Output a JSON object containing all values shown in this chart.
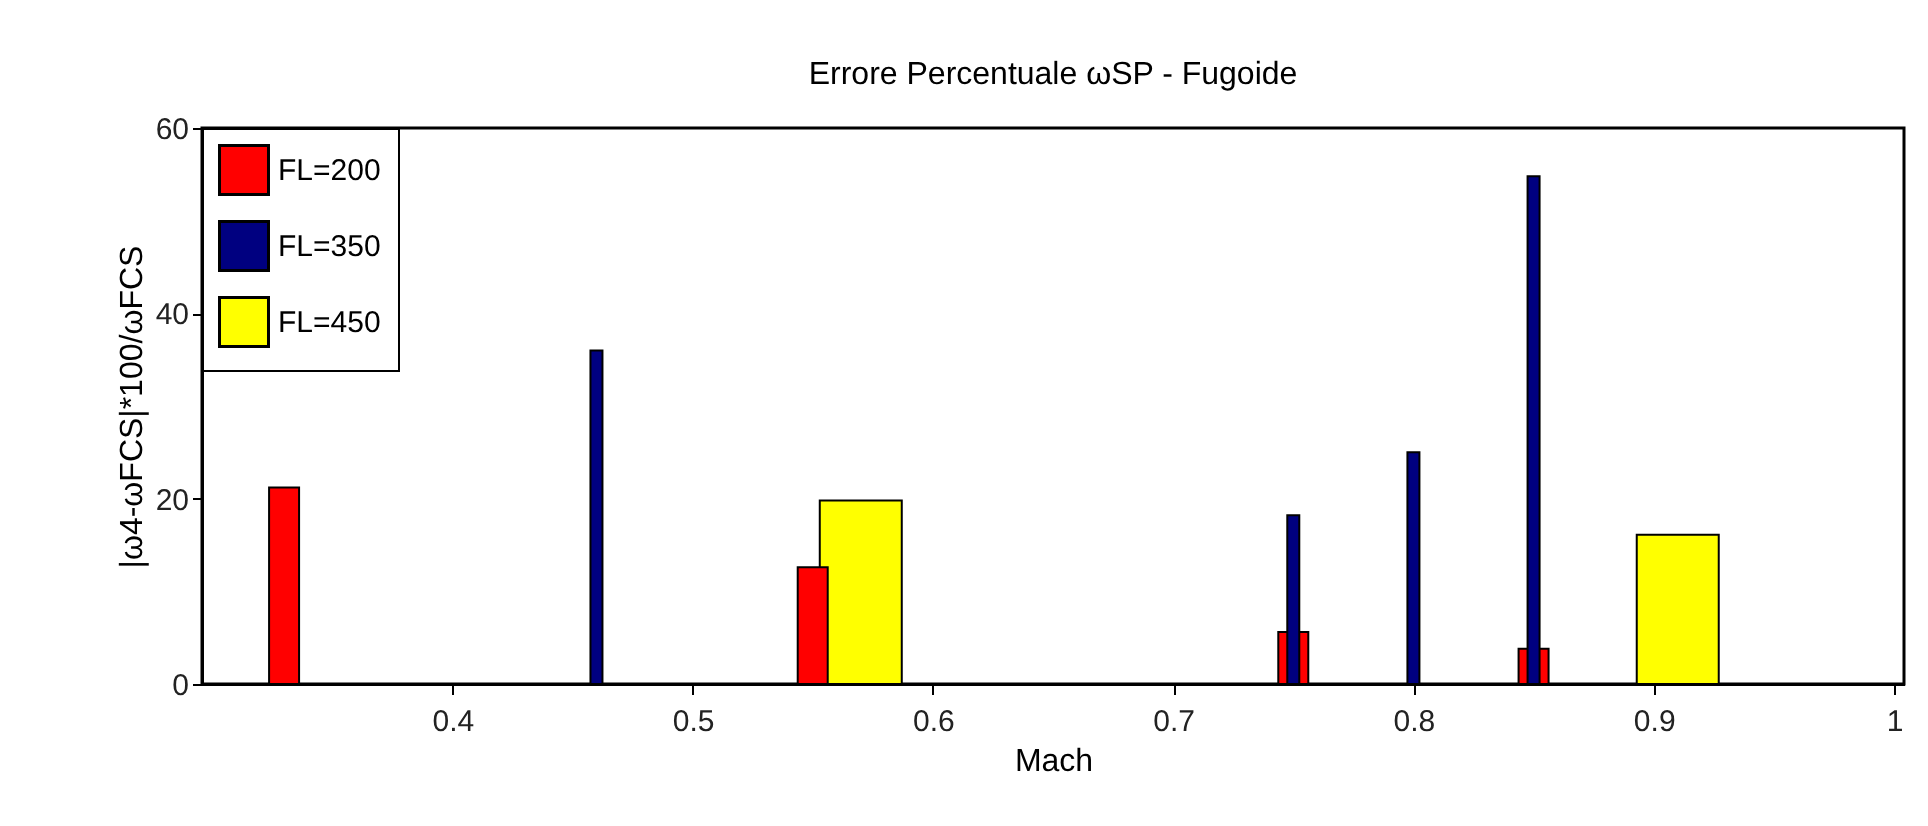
{
  "chart_data": {
    "type": "bar",
    "title": "Errore Percentuale ωSP - Fugoide",
    "xlabel": "Mach",
    "ylabel": "|ω4-ωFCS|*100/ωFCS",
    "series": [
      {
        "name": "FL=200",
        "color": "#ff0000",
        "x": [
          0.33,
          0.55,
          0.75,
          0.85
        ],
        "values": [
          21.2,
          12.6,
          5.6,
          3.8
        ]
      },
      {
        "name": "FL=350",
        "color": "#000080",
        "x": [
          0.46,
          0.75,
          0.8,
          0.85
        ],
        "values": [
          36,
          18.2,
          25,
          54.8
        ]
      },
      {
        "name": "FL=450",
        "color": "#ffff00",
        "x": [
          0.57,
          0.91
        ],
        "values": [
          19.8,
          16.1
        ]
      }
    ],
    "xlim": [
      0.3,
      1
    ],
    "xticks": [
      0.4,
      0.5,
      0.6,
      0.7,
      0.8,
      0.9,
      1
    ],
    "ylim": [
      0,
      60
    ],
    "yticks": [
      0,
      20,
      40,
      60
    ],
    "grid": false,
    "legend": "top left"
  }
}
